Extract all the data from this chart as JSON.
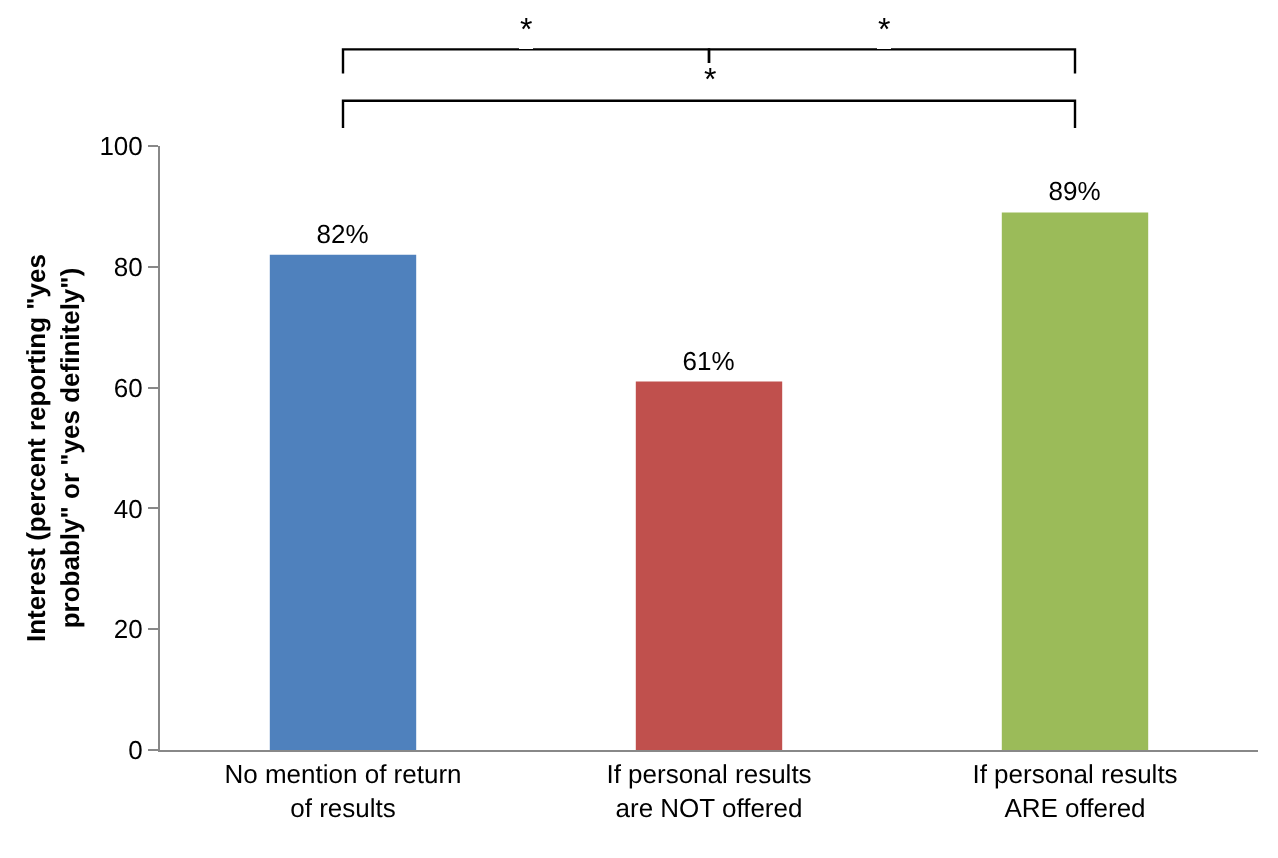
{
  "chart_data": {
    "type": "bar",
    "categories": [
      "No mention of return of results",
      "If personal results are NOT offered",
      "If personal results ARE offered"
    ],
    "values": [
      82,
      61,
      89
    ],
    "colors": [
      "#4f81bd",
      "#c0504d",
      "#9bbb59"
    ],
    "value_labels": [
      "82%",
      "61%",
      "89%"
    ],
    "ylabel": "Interest (percent reporting \"yes probably\" or \"yes definitely\")",
    "ylim": [
      0,
      100
    ],
    "yticks": [
      0,
      20,
      40,
      60,
      80,
      100
    ],
    "legend": false,
    "annotations": [
      "*",
      "*",
      "*"
    ]
  }
}
